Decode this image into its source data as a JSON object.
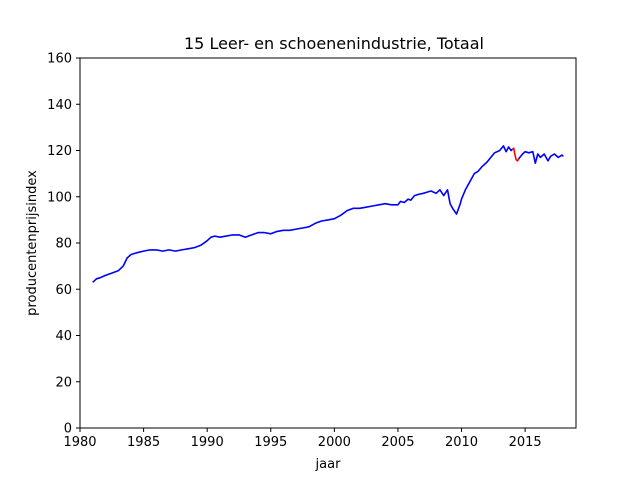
{
  "chart_data": {
    "type": "line",
    "title": "15 Leer- en schoenenindustrie, Totaal",
    "xlabel": "jaar",
    "ylabel": "producentenprijsindex",
    "xlim": [
      1980,
      2019
    ],
    "ylim": [
      0,
      160
    ],
    "xticks": [
      1980,
      1985,
      1990,
      1995,
      2000,
      2005,
      2010,
      2015
    ],
    "yticks": [
      0,
      20,
      40,
      60,
      80,
      100,
      120,
      140,
      160
    ],
    "grid": false,
    "series": [
      {
        "color": "#0000ff",
        "x": [
          1981.0,
          1981.3,
          1981.6,
          1982.0,
          1982.5,
          1983.0,
          1983.4,
          1983.7,
          1984.0,
          1984.3,
          1984.6,
          1985.0,
          1985.5,
          1986.0,
          1986.5,
          1987.0,
          1987.5,
          1988.0,
          1988.5,
          1989.0,
          1989.5,
          1990.0,
          1990.3,
          1990.6,
          1991.0,
          1991.5,
          1992.0,
          1992.5,
          1993.0,
          1993.5,
          1994.0,
          1994.5,
          1995.0,
          1995.5,
          1996.0,
          1996.5,
          1997.0,
          1997.5,
          1998.0,
          1998.5,
          1999.0,
          1999.5,
          2000.0,
          2000.5,
          2001.0,
          2001.5,
          2002.0,
          2002.5,
          2003.0,
          2003.5,
          2004.0,
          2004.5,
          2005.0,
          2005.2,
          2005.5,
          2005.8,
          2006.0,
          2006.3,
          2006.6,
          2007.0,
          2007.3,
          2007.6,
          2008.0,
          2008.3,
          2008.6,
          2008.9,
          2009.1,
          2009.3,
          2009.6,
          2009.9,
          2010.0,
          2010.3,
          2010.6,
          2011.0,
          2011.3,
          2011.6,
          2012.0,
          2012.3,
          2012.6,
          2013.0,
          2013.3,
          2013.5,
          2013.7,
          2013.9,
          2014.0
        ],
        "y": [
          63,
          64.5,
          65,
          66,
          67,
          68,
          70,
          73.5,
          75,
          75.5,
          76,
          76.5,
          77,
          77,
          76.5,
          77,
          76.5,
          77,
          77.5,
          78,
          79,
          81,
          82.5,
          83,
          82.5,
          83,
          83.5,
          83.5,
          82.5,
          83.5,
          84.5,
          84.5,
          84,
          85,
          85.5,
          85.5,
          86,
          86.5,
          87,
          88.5,
          89.5,
          90,
          90.5,
          92,
          94,
          95,
          95,
          95.5,
          96,
          96.5,
          97,
          96.5,
          96.5,
          98,
          97.5,
          99,
          98.5,
          100.5,
          101,
          101.5,
          102,
          102.5,
          101.5,
          103,
          100.5,
          103,
          97,
          95,
          92.5,
          97,
          99,
          103,
          106,
          110,
          111,
          113,
          115,
          117,
          119,
          120,
          122,
          119.5,
          121.5,
          120,
          120.5
        ]
      },
      {
        "color": "#ff0000",
        "x": [
          2014.0,
          2014.1,
          2014.2,
          2014.3,
          2014.4,
          2014.5
        ],
        "y": [
          120.5,
          121,
          118,
          116,
          115.5,
          116.5
        ]
      },
      {
        "color": "#0000ff",
        "x": [
          2014.5,
          2014.8,
          2015.0,
          2015.3,
          2015.6,
          2015.8,
          2016.0,
          2016.2,
          2016.5,
          2016.8,
          2017.0,
          2017.3,
          2017.6,
          2017.9,
          2018.0
        ],
        "y": [
          116.5,
          118.5,
          119.5,
          119,
          119.5,
          114.5,
          118.5,
          117,
          118.5,
          115.5,
          117.5,
          118.5,
          117,
          118,
          117.5
        ]
      }
    ]
  }
}
